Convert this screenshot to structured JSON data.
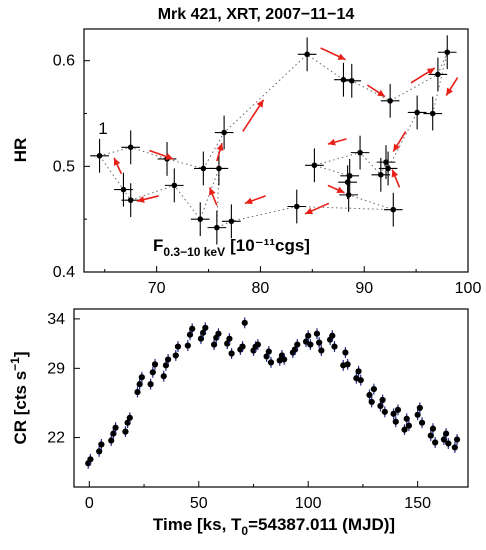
{
  "title": "Mrk 421, XRT, 2007−11−14",
  "chart_data": [
    {
      "type": "scatter",
      "panel": "hardness-flux",
      "xlabel": "F",
      "xlabel_sub": "0.3−10 keV",
      "xlabel_units": "[10⁻¹¹cgs]",
      "ylabel": "HR",
      "xlim": [
        63,
        100
      ],
      "ylim": [
        0.4,
        0.63
      ],
      "xticks": [
        "70",
        "80",
        "90",
        "100"
      ],
      "yticks": [
        "0.4",
        "0.5",
        "0.6"
      ],
      "start_label": "1",
      "marker_color": "#000000",
      "line_color": "#666666",
      "arrow_color": "#e8201a",
      "points": [
        {
          "x": 64.5,
          "y": 0.51,
          "xerr": 0.9,
          "yerr": 0.016
        },
        {
          "x": 66.8,
          "y": 0.478,
          "xerr": 0.9,
          "yerr": 0.016
        },
        {
          "x": 67.5,
          "y": 0.518,
          "xerr": 0.9,
          "yerr": 0.016
        },
        {
          "x": 67.5,
          "y": 0.468,
          "xerr": 0.9,
          "yerr": 0.016
        },
        {
          "x": 71.0,
          "y": 0.507,
          "xerr": 0.9,
          "yerr": 0.016
        },
        {
          "x": 71.7,
          "y": 0.482,
          "xerr": 0.9,
          "yerr": 0.016
        },
        {
          "x": 74.2,
          "y": 0.45,
          "xerr": 0.9,
          "yerr": 0.016
        },
        {
          "x": 74.5,
          "y": 0.498,
          "xerr": 0.9,
          "yerr": 0.016
        },
        {
          "x": 75.8,
          "y": 0.442,
          "xerr": 0.9,
          "yerr": 0.016
        },
        {
          "x": 76.0,
          "y": 0.498,
          "xerr": 0.9,
          "yerr": 0.016
        },
        {
          "x": 76.5,
          "y": 0.532,
          "xerr": 0.9,
          "yerr": 0.016
        },
        {
          "x": 77.2,
          "y": 0.448,
          "xerr": 0.9,
          "yerr": 0.016
        },
        {
          "x": 83.5,
          "y": 0.462,
          "xerr": 0.9,
          "yerr": 0.016
        },
        {
          "x": 84.5,
          "y": 0.606,
          "xerr": 0.9,
          "yerr": 0.016
        },
        {
          "x": 85.2,
          "y": 0.501,
          "xerr": 0.9,
          "yerr": 0.016
        },
        {
          "x": 88.0,
          "y": 0.582,
          "xerr": 0.9,
          "yerr": 0.016
        },
        {
          "x": 88.4,
          "y": 0.485,
          "xerr": 0.9,
          "yerr": 0.016
        },
        {
          "x": 88.5,
          "y": 0.473,
          "xerr": 0.9,
          "yerr": 0.016
        },
        {
          "x": 88.6,
          "y": 0.491,
          "xerr": 0.9,
          "yerr": 0.016
        },
        {
          "x": 88.8,
          "y": 0.581,
          "xerr": 0.9,
          "yerr": 0.016
        },
        {
          "x": 89.6,
          "y": 0.513,
          "xerr": 0.9,
          "yerr": 0.016
        },
        {
          "x": 91.6,
          "y": 0.492,
          "xerr": 0.9,
          "yerr": 0.016
        },
        {
          "x": 92.1,
          "y": 0.504,
          "xerr": 0.9,
          "yerr": 0.016
        },
        {
          "x": 92.3,
          "y": 0.498,
          "xerr": 0.9,
          "yerr": 0.016
        },
        {
          "x": 92.5,
          "y": 0.562,
          "xerr": 0.9,
          "yerr": 0.016
        },
        {
          "x": 92.8,
          "y": 0.459,
          "xerr": 0.9,
          "yerr": 0.016
        },
        {
          "x": 95.1,
          "y": 0.551,
          "xerr": 0.9,
          "yerr": 0.016
        },
        {
          "x": 96.6,
          "y": 0.55,
          "xerr": 0.9,
          "yerr": 0.016
        },
        {
          "x": 97.1,
          "y": 0.587,
          "xerr": 0.9,
          "yerr": 0.016
        },
        {
          "x": 98.0,
          "y": 0.608,
          "xerr": 0.9,
          "yerr": 0.016
        }
      ],
      "path": [
        [
          64.5,
          0.51
        ],
        [
          67.5,
          0.518
        ],
        [
          71.0,
          0.507
        ],
        [
          74.5,
          0.498
        ],
        [
          76.5,
          0.532
        ],
        [
          84.5,
          0.606
        ],
        [
          88.0,
          0.582
        ],
        [
          88.8,
          0.581
        ],
        [
          92.5,
          0.562
        ],
        [
          97.1,
          0.587
        ],
        [
          98.0,
          0.608
        ],
        [
          96.6,
          0.55
        ],
        [
          95.1,
          0.551
        ],
        [
          92.3,
          0.498
        ],
        [
          92.1,
          0.504
        ],
        [
          91.6,
          0.492
        ],
        [
          89.6,
          0.513
        ],
        [
          85.2,
          0.501
        ],
        [
          88.6,
          0.491
        ],
        [
          88.4,
          0.485
        ],
        [
          88.5,
          0.473
        ],
        [
          92.8,
          0.459
        ],
        [
          83.5,
          0.462
        ],
        [
          77.2,
          0.448
        ],
        [
          75.8,
          0.442
        ],
        [
          76.0,
          0.498
        ],
        [
          74.2,
          0.45
        ],
        [
          71.7,
          0.482
        ],
        [
          67.5,
          0.468
        ],
        [
          66.8,
          0.478
        ],
        [
          64.5,
          0.51
        ]
      ],
      "arrows": [
        {
          "from": [
            69.3,
            0.515
          ],
          "to": [
            71.6,
            0.507
          ]
        },
        {
          "from": [
            75.8,
            0.505
          ],
          "to": [
            76.3,
            0.522
          ]
        },
        {
          "from": [
            78.3,
            0.533
          ],
          "to": [
            80.3,
            0.563
          ]
        },
        {
          "from": [
            85.8,
            0.612
          ],
          "to": [
            88.2,
            0.601
          ]
        },
        {
          "from": [
            90.3,
            0.577
          ],
          "to": [
            92.0,
            0.566
          ]
        },
        {
          "from": [
            94.5,
            0.579
          ],
          "to": [
            96.8,
            0.593
          ]
        },
        {
          "from": [
            99.0,
            0.584
          ],
          "to": [
            97.9,
            0.567
          ]
        },
        {
          "from": [
            94.0,
            0.533
          ],
          "to": [
            92.8,
            0.514
          ]
        },
        {
          "from": [
            88.3,
            0.526
          ],
          "to": [
            86.5,
            0.521
          ]
        },
        {
          "from": [
            93.4,
            0.48
          ],
          "to": [
            92.7,
            0.497
          ]
        },
        {
          "from": [
            86.5,
            0.482
          ],
          "to": [
            88.1,
            0.475
          ]
        },
        {
          "from": [
            86.6,
            0.465
          ],
          "to": [
            84.3,
            0.455
          ]
        },
        {
          "from": [
            80.5,
            0.472
          ],
          "to": [
            78.5,
            0.465
          ]
        },
        {
          "from": [
            75.8,
            0.463
          ],
          "to": [
            75.1,
            0.48
          ]
        },
        {
          "from": [
            70.2,
            0.472
          ],
          "to": [
            68.1,
            0.467
          ]
        },
        {
          "from": [
            66.6,
            0.493
          ],
          "to": [
            65.9,
            0.508
          ]
        }
      ]
    },
    {
      "type": "scatter",
      "panel": "light-curve",
      "xlabel": "Time [ks, T",
      "xlabel_sub": "0",
      "xlabel_tail": "=54387.011 (MJD)]",
      "ylabel": "CR [cts s",
      "ylabel_sup": "−1",
      "ylabel_tail": "]",
      "xlim": [
        -7,
        173
      ],
      "ylim": [
        17,
        35
      ],
      "xticks": [
        "0",
        "50",
        "100",
        "150"
      ],
      "yticks": [
        "22",
        "29",
        "34"
      ],
      "marker_color": "#000000",
      "errorbar_color": "#1f2a8c",
      "points": [
        [
          -0.5,
          19.4
        ],
        [
          0.5,
          19.8
        ],
        [
          4.5,
          20.6
        ],
        [
          5.5,
          21.3
        ],
        [
          10,
          21.7
        ],
        [
          11,
          22.4
        ],
        [
          12,
          23.0
        ],
        [
          16.5,
          22.6
        ],
        [
          17.5,
          23.5
        ],
        [
          18.5,
          24.0
        ],
        [
          22,
          26.6
        ],
        [
          23,
          27.4
        ],
        [
          24,
          28.1
        ],
        [
          28,
          27.4
        ],
        [
          29,
          28.6
        ],
        [
          30,
          29.4
        ],
        [
          34,
          28.2
        ],
        [
          35,
          29.3
        ],
        [
          36,
          29.9
        ],
        [
          39.5,
          30.3
        ],
        [
          40.5,
          31.2
        ],
        [
          45,
          31.3
        ],
        [
          46,
          32.4
        ],
        [
          47,
          33.0
        ],
        [
          51,
          32.0
        ],
        [
          52,
          32.6
        ],
        [
          53,
          33.1
        ],
        [
          57,
          31.4
        ],
        [
          58,
          32.1
        ],
        [
          59,
          32.5
        ],
        [
          63,
          31.5
        ],
        [
          64,
          32.0
        ],
        [
          65,
          30.5
        ],
        [
          69,
          30.9
        ],
        [
          70,
          31.2
        ],
        [
          71,
          33.6
        ],
        [
          75,
          30.8
        ],
        [
          76,
          31.2
        ],
        [
          77,
          31.4
        ],
        [
          81,
          30.2
        ],
        [
          82,
          30.7
        ],
        [
          83,
          29.6
        ],
        [
          87,
          29.8
        ],
        [
          88,
          30.3
        ],
        [
          89,
          29.9
        ],
        [
          93,
          30.6
        ],
        [
          94,
          30.9
        ],
        [
          95,
          31.4
        ],
        [
          99,
          31.7
        ],
        [
          100,
          32.3
        ],
        [
          101,
          31.4
        ],
        [
          104,
          32.5
        ],
        [
          105,
          31.6
        ],
        [
          106,
          30.8
        ],
        [
          110,
          31.9
        ],
        [
          111,
          32.3
        ],
        [
          112,
          31.2
        ],
        [
          116,
          29.3
        ],
        [
          117,
          30.6
        ],
        [
          118,
          29.4
        ],
        [
          122,
          28.0
        ],
        [
          123,
          28.7
        ],
        [
          124,
          27.8
        ],
        [
          128,
          26.3
        ],
        [
          129,
          25.6
        ],
        [
          130,
          26.9
        ],
        [
          133,
          25.2
        ],
        [
          134,
          25.8
        ],
        [
          135,
          24.6
        ],
        [
          139,
          24.4
        ],
        [
          140,
          23.6
        ],
        [
          141,
          24.8
        ],
        [
          144,
          22.8
        ],
        [
          145,
          23.9
        ],
        [
          146,
          23.2
        ],
        [
          150,
          24.3
        ],
        [
          151,
          25.0
        ],
        [
          152,
          23.5
        ],
        [
          156,
          22.2
        ],
        [
          157,
          22.9
        ],
        [
          158,
          21.5
        ],
        [
          162,
          21.8
        ],
        [
          163,
          22.4
        ],
        [
          164,
          21.4
        ],
        [
          167,
          21.0
        ],
        [
          168,
          21.8
        ]
      ]
    }
  ]
}
